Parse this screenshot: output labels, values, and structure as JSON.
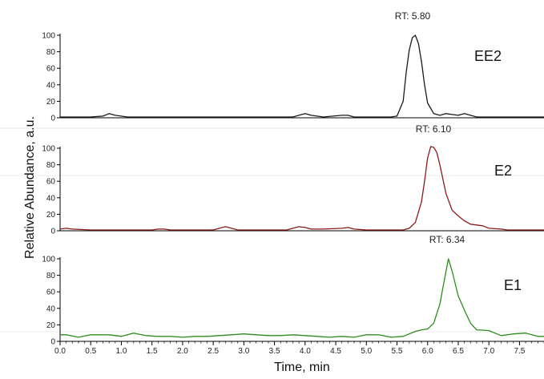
{
  "chart_data": {
    "type": "line",
    "xlabel": "Time, min",
    "ylabel": "Relative Abundance, a.u.",
    "xlim": [
      0.0,
      7.9
    ],
    "x_ticks": [
      "0.0",
      "0.5",
      "1.0",
      "1.5",
      "2.0",
      "2.5",
      "3.0",
      "3.5",
      "4.0",
      "4.5",
      "5.0",
      "5.5",
      "6.0",
      "6.5",
      "7.0",
      "7.5"
    ],
    "ylim": [
      0,
      100
    ],
    "y_ticks": [
      "0",
      "20",
      "40",
      "60",
      "80",
      "100"
    ],
    "grid": false,
    "legend": "none",
    "panels": [
      {
        "name": "EE2",
        "peak_label": "RT: 5.80",
        "color": "#1a1a1a",
        "x": [
          0.0,
          0.5,
          0.7,
          0.8,
          0.9,
          1.1,
          1.5,
          2.0,
          3.0,
          3.8,
          3.9,
          4.0,
          4.1,
          4.3,
          4.6,
          4.7,
          4.8,
          5.0,
          5.4,
          5.5,
          5.6,
          5.65,
          5.7,
          5.75,
          5.8,
          5.85,
          5.9,
          5.95,
          6.0,
          6.1,
          6.2,
          6.3,
          6.4,
          6.5,
          6.6,
          6.7,
          6.8,
          6.9,
          7.2,
          7.9
        ],
        "values": [
          1,
          1,
          2,
          5,
          3,
          1,
          1,
          1,
          1,
          1,
          3,
          5,
          3,
          1,
          3,
          3,
          1,
          1,
          1,
          2,
          20,
          55,
          82,
          97,
          100,
          90,
          68,
          40,
          18,
          5,
          3,
          5,
          4,
          3,
          5,
          3,
          1,
          1,
          1,
          1
        ]
      },
      {
        "name": "E2",
        "peak_label": "RT: 6.10",
        "color": "#8b1a1a",
        "x": [
          0.0,
          0.1,
          0.2,
          0.5,
          1.5,
          1.6,
          1.7,
          1.8,
          2.5,
          2.6,
          2.7,
          2.8,
          2.9,
          3.7,
          3.8,
          3.9,
          4.0,
          4.1,
          4.3,
          4.6,
          4.7,
          4.8,
          5.0,
          5.6,
          5.7,
          5.8,
          5.9,
          5.95,
          6.0,
          6.05,
          6.1,
          6.15,
          6.2,
          6.3,
          6.4,
          6.5,
          6.6,
          6.7,
          6.8,
          6.9,
          7.0,
          7.2,
          7.3,
          7.9
        ],
        "values": [
          2,
          3,
          2,
          1,
          1,
          2,
          2,
          1,
          1,
          3,
          5,
          3,
          1,
          1,
          3,
          5,
          4,
          2,
          2,
          3,
          4,
          2,
          1,
          1,
          3,
          10,
          35,
          60,
          88,
          102,
          101,
          95,
          80,
          45,
          25,
          18,
          12,
          8,
          7,
          6,
          3,
          2,
          1,
          1
        ]
      },
      {
        "name": "E1",
        "peak_label": "RT: 6.34",
        "color": "#2e8b1e",
        "x": [
          0.0,
          0.1,
          0.3,
          0.5,
          0.8,
          1.0,
          1.2,
          1.4,
          1.6,
          1.8,
          2.0,
          2.2,
          2.4,
          2.6,
          2.8,
          3.0,
          3.2,
          3.4,
          3.6,
          3.8,
          4.0,
          4.2,
          4.4,
          4.6,
          4.8,
          5.0,
          5.2,
          5.4,
          5.6,
          5.8,
          5.9,
          6.0,
          6.1,
          6.2,
          6.3,
          6.34,
          6.4,
          6.5,
          6.6,
          6.7,
          6.8,
          7.0,
          7.2,
          7.4,
          7.6,
          7.8,
          7.9
        ],
        "values": [
          8,
          8,
          5,
          8,
          8,
          6,
          10,
          7,
          6,
          6,
          5,
          6,
          6,
          7,
          8,
          9,
          8,
          7,
          7,
          8,
          7,
          6,
          5,
          6,
          5,
          8,
          8,
          5,
          6,
          12,
          14,
          15,
          22,
          45,
          85,
          100,
          85,
          55,
          38,
          22,
          14,
          13,
          7,
          9,
          10,
          6,
          6
        ]
      }
    ]
  }
}
